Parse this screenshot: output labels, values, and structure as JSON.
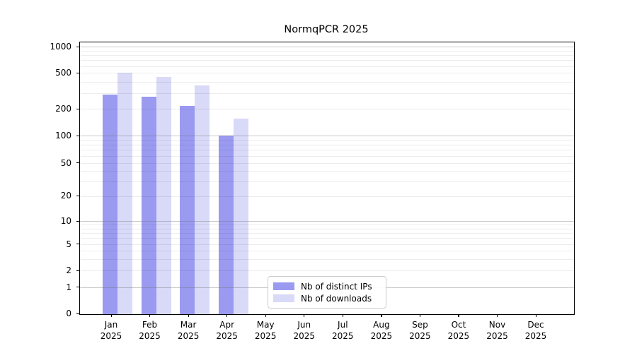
{
  "title": "NormqPCR 2025",
  "colors": {
    "distinct_ips": "#9a9af0",
    "downloads": "#d9d9f8",
    "grid_major": "rgba(110,110,110,0.38)",
    "grid_minor": "rgba(0,0,0,0.07)",
    "axis_frame": "#000000",
    "legend_border": "#cccccc"
  },
  "legend": {
    "items": [
      {
        "label": "Nb of distinct IPs",
        "series_key": "distinct_ips"
      },
      {
        "label": "Nb of downloads",
        "series_key": "downloads"
      }
    ]
  },
  "chart_data": {
    "type": "bar",
    "title": "NormqPCR 2025",
    "categories": [
      {
        "month": "Jan",
        "year": "2025"
      },
      {
        "month": "Feb",
        "year": "2025"
      },
      {
        "month": "Mar",
        "year": "2025"
      },
      {
        "month": "Apr",
        "year": "2025"
      },
      {
        "month": "May",
        "year": "2025"
      },
      {
        "month": "Jun",
        "year": "2025"
      },
      {
        "month": "Jul",
        "year": "2025"
      },
      {
        "month": "Aug",
        "year": "2025"
      },
      {
        "month": "Sep",
        "year": "2025"
      },
      {
        "month": "Oct",
        "year": "2025"
      },
      {
        "month": "Nov",
        "year": "2025"
      },
      {
        "month": "Dec",
        "year": "2025"
      }
    ],
    "series": [
      {
        "name": "Nb of distinct IPs",
        "color_key": "distinct_ips",
        "values": [
          293,
          280,
          220,
          103,
          null,
          null,
          null,
          null,
          null,
          null,
          null,
          null
        ]
      },
      {
        "name": "Nb of downloads",
        "color_key": "downloads",
        "values": [
          515,
          460,
          370,
          160,
          null,
          null,
          null,
          null,
          null,
          null,
          null,
          null
        ]
      }
    ],
    "y_axis": {
      "ticks": [
        0,
        1,
        2,
        5,
        10,
        20,
        50,
        100,
        200,
        500,
        1000
      ],
      "scale": "symlog",
      "major_gridlines": [
        1,
        10,
        100,
        1000
      ],
      "ylim": [
        0,
        1000
      ],
      "grid": true
    },
    "xlabel": "",
    "ylabel": "",
    "legend_position": "lower-center-inside"
  }
}
